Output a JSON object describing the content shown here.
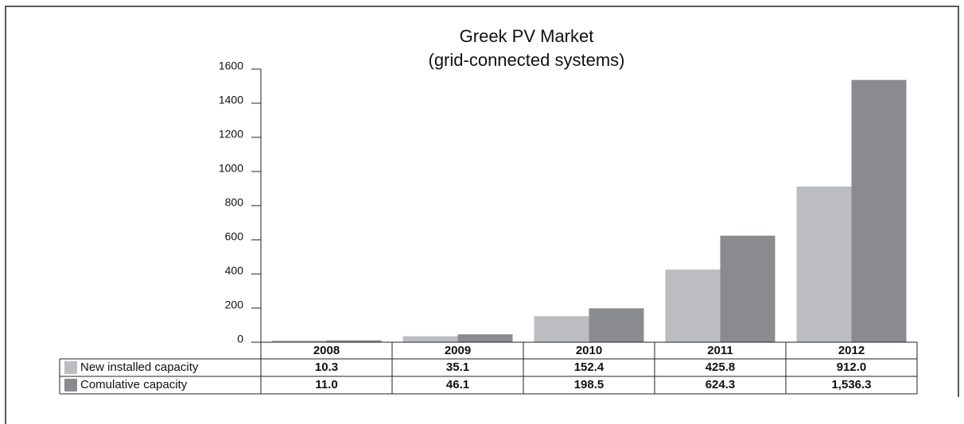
{
  "chart_data": {
    "type": "bar",
    "title": "Greek PV Market",
    "subtitle": "(grid-connected systems)",
    "categories": [
      "2008",
      "2009",
      "2010",
      "2011",
      "2012"
    ],
    "series": [
      {
        "name": "New installed capacity",
        "color": "#bcbdc0",
        "values": [
          10.3,
          35.1,
          152.4,
          425.8,
          912.0
        ],
        "value_labels": [
          "10.3",
          "35.1",
          "152.4",
          "425.8",
          "912.0"
        ]
      },
      {
        "name": "Comulative capacity",
        "color": "#8a8b8e",
        "values": [
          11.0,
          46.1,
          198.5,
          624.3,
          1536.3
        ],
        "value_labels": [
          "11.0",
          "46.1",
          "198.5",
          "624.3",
          "1,536.3"
        ]
      }
    ],
    "ylim": [
      0,
      1600
    ],
    "yticks": [
      0,
      200,
      400,
      600,
      800,
      1000,
      1200,
      1400,
      1600
    ]
  }
}
